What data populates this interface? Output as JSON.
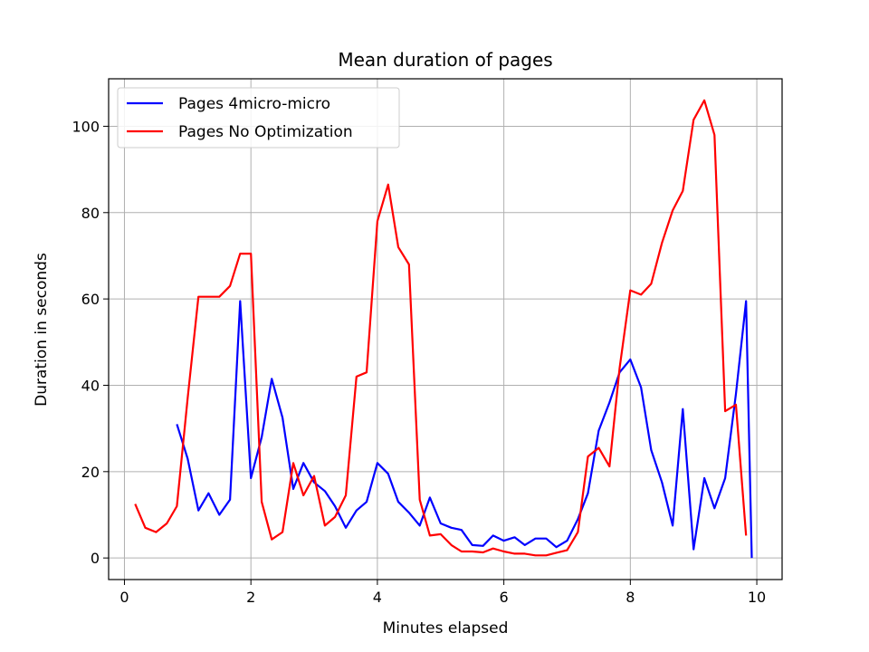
{
  "chart_data": {
    "type": "line",
    "title": "Mean duration of pages",
    "xlabel": "Minutes elapsed",
    "ylabel": "Duration in seconds",
    "xlim": [
      -0.25,
      10.4
    ],
    "ylim": [
      -5,
      111
    ],
    "xticks": [
      0,
      2,
      4,
      6,
      8,
      10
    ],
    "yticks": [
      0,
      20,
      40,
      60,
      80,
      100
    ],
    "grid": true,
    "legend_position": "upper-left",
    "series": [
      {
        "name": "Pages 4micro-micro",
        "color": "#0000ff",
        "x": [
          0.83,
          1.0,
          1.17,
          1.33,
          1.5,
          1.67,
          1.83,
          2.0,
          2.17,
          2.33,
          2.5,
          2.67,
          2.83,
          3.0,
          3.17,
          3.33,
          3.5,
          3.67,
          3.83,
          4.0,
          4.17,
          4.33,
          4.5,
          4.67,
          4.83,
          5.0,
          5.17,
          5.33,
          5.5,
          5.67,
          5.83,
          6.0,
          6.17,
          6.33,
          6.5,
          6.67,
          6.83,
          7.0,
          7.17,
          7.33,
          7.5,
          7.67,
          7.83,
          8.0,
          8.17,
          8.33,
          8.5,
          8.67,
          8.83,
          9.0,
          9.17,
          9.33,
          9.5,
          9.67,
          9.83,
          9.92
        ],
        "y": [
          31,
          23,
          11,
          15,
          10,
          13.5,
          59.5,
          18.5,
          28,
          41.5,
          32.5,
          16,
          22,
          17.5,
          15.5,
          12,
          7,
          11,
          13,
          22,
          19.5,
          13,
          10.5,
          7.5,
          14,
          8,
          7,
          6.5,
          3,
          2.8,
          5.2,
          4,
          4.8,
          3,
          4.5,
          4.5,
          2.5,
          4,
          9,
          15,
          29.5,
          36,
          43,
          46,
          39.5,
          25,
          17.5,
          7.5,
          34.5,
          2,
          18.5,
          11.5,
          18.5,
          38,
          59.5,
          0
        ]
      },
      {
        "name": "Pages No Optimization",
        "color": "#ff0000",
        "x": [
          0.17,
          0.33,
          0.5,
          0.67,
          0.83,
          1.0,
          1.17,
          1.33,
          1.5,
          1.67,
          1.83,
          2.0,
          2.17,
          2.33,
          2.5,
          2.67,
          2.83,
          3.0,
          3.17,
          3.33,
          3.5,
          3.67,
          3.83,
          4.0,
          4.17,
          4.33,
          4.5,
          4.67,
          4.83,
          5.0,
          5.17,
          5.33,
          5.5,
          5.67,
          5.83,
          6.0,
          6.17,
          6.33,
          6.5,
          6.67,
          6.83,
          7.0,
          7.17,
          7.33,
          7.5,
          7.67,
          7.83,
          8.0,
          8.17,
          8.33,
          8.5,
          8.67,
          8.83,
          9.0,
          9.17,
          9.33,
          9.5,
          9.67,
          9.83
        ],
        "y": [
          12.5,
          7,
          6,
          8,
          12,
          37,
          60.5,
          60.5,
          60.5,
          63,
          70.5,
          70.5,
          13,
          4.3,
          6,
          22,
          14.5,
          19,
          7.5,
          9.5,
          14.5,
          42,
          43,
          78,
          86.5,
          72,
          68,
          13.5,
          5.2,
          5.5,
          3,
          1.5,
          1.5,
          1.3,
          2.2,
          1.5,
          1,
          1,
          0.6,
          0.6,
          1.2,
          1.8,
          6,
          23.5,
          25.5,
          21.2,
          44,
          62,
          61,
          63.5,
          73,
          80.5,
          85,
          101.5,
          106,
          98,
          34,
          35.5,
          5.2
        ]
      }
    ]
  }
}
